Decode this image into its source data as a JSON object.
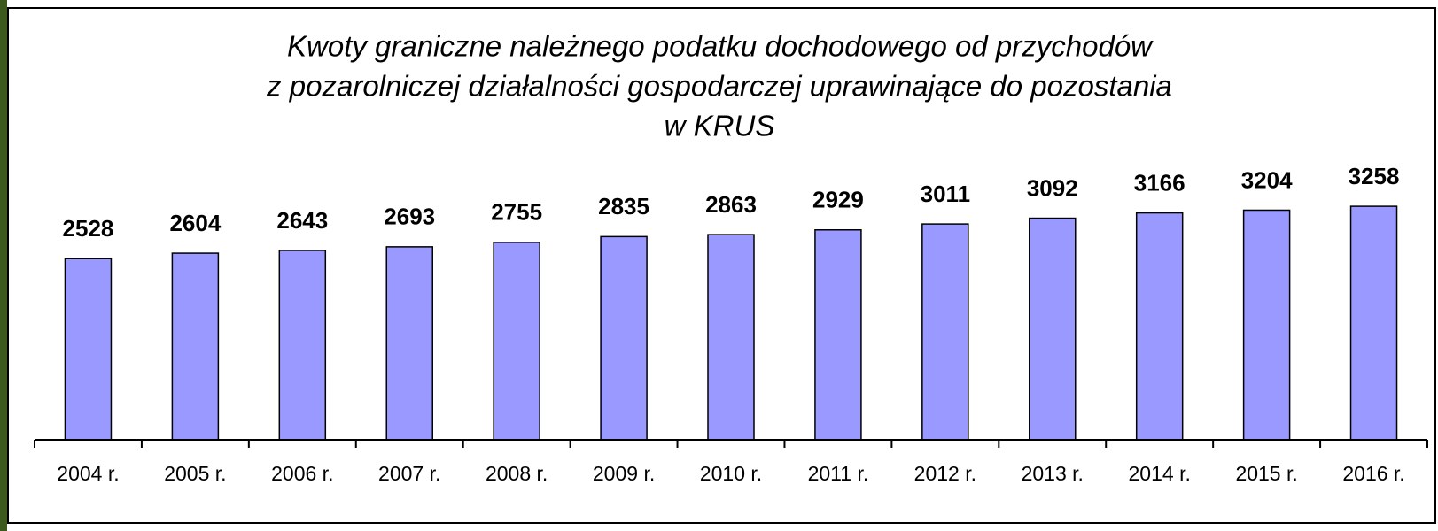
{
  "chart_data": {
    "type": "bar",
    "title": [
      "Kwoty graniczne należnego podatku dochodowego od przychodów",
      "z pozarolniczej działalności gospodarczej uprawinające do pozostania",
      "w KRUS"
    ],
    "categories": [
      "2004 r.",
      "2005 r.",
      "2006 r.",
      "2007 r.",
      "2008 r.",
      "2009 r.",
      "2010 r.",
      "2011 r.",
      "2012 r.",
      "2013 r.",
      "2014 r.",
      "2015 r.",
      "2016 r."
    ],
    "values": [
      2528,
      2604,
      2643,
      2693,
      2755,
      2835,
      2863,
      2929,
      3011,
      3092,
      3166,
      3204,
      3258
    ],
    "color": "#9999ff",
    "ylim": [
      0,
      4000
    ]
  }
}
